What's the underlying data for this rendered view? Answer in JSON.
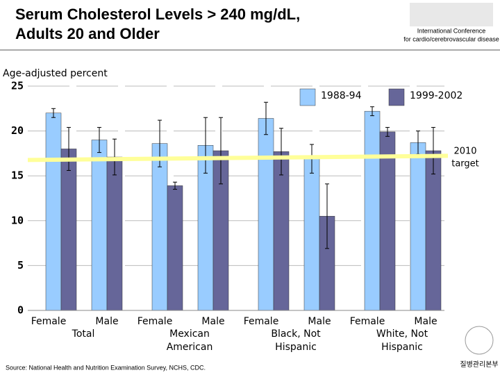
{
  "chart_data": {
    "type": "bar",
    "title_lines": [
      "Serum Cholesterol Levels > 240 mg/dL,",
      "Adults 20 and Older"
    ],
    "header_note": [
      "International Conference",
      "for cardio/cerebrovascular disease"
    ],
    "y_label": "Age-adjusted percent",
    "categories": [
      "Female",
      "Male",
      "Female",
      "Male",
      "Female",
      "Male",
      "Female",
      "Male"
    ],
    "groups": [
      [
        "Total"
      ],
      [
        "Mexican",
        "American"
      ],
      [
        "Black, Not",
        "Hispanic"
      ],
      [
        "White, Not",
        "Hispanic"
      ]
    ],
    "series": [
      {
        "name": "1988-94",
        "color": "#99ccff",
        "values": [
          22.0,
          19.0,
          18.6,
          18.4,
          21.4,
          16.9,
          22.2,
          18.7
        ],
        "errors": [
          0.5,
          1.4,
          2.6,
          3.1,
          1.8,
          1.6,
          0.5,
          1.3
        ]
      },
      {
        "name": "1999-2002",
        "color": "#666699",
        "values": [
          18.0,
          17.1,
          13.9,
          17.8,
          17.7,
          10.5,
          19.9,
          17.8
        ],
        "errors": [
          2.4,
          2.0,
          0.4,
          3.7,
          2.6,
          3.6,
          0.5,
          2.6
        ]
      }
    ],
    "target": {
      "value": 17,
      "label_lines": [
        "2010",
        "target"
      ],
      "color": "#ffff99"
    },
    "ylim": [
      0,
      25
    ],
    "yticks": [
      0,
      5,
      10,
      15,
      20,
      25
    ],
    "grid": true,
    "source": "Source: National Health and Nutrition Examination Survey, NCHS, CDC.",
    "logo_caption": "질병관리본부"
  }
}
